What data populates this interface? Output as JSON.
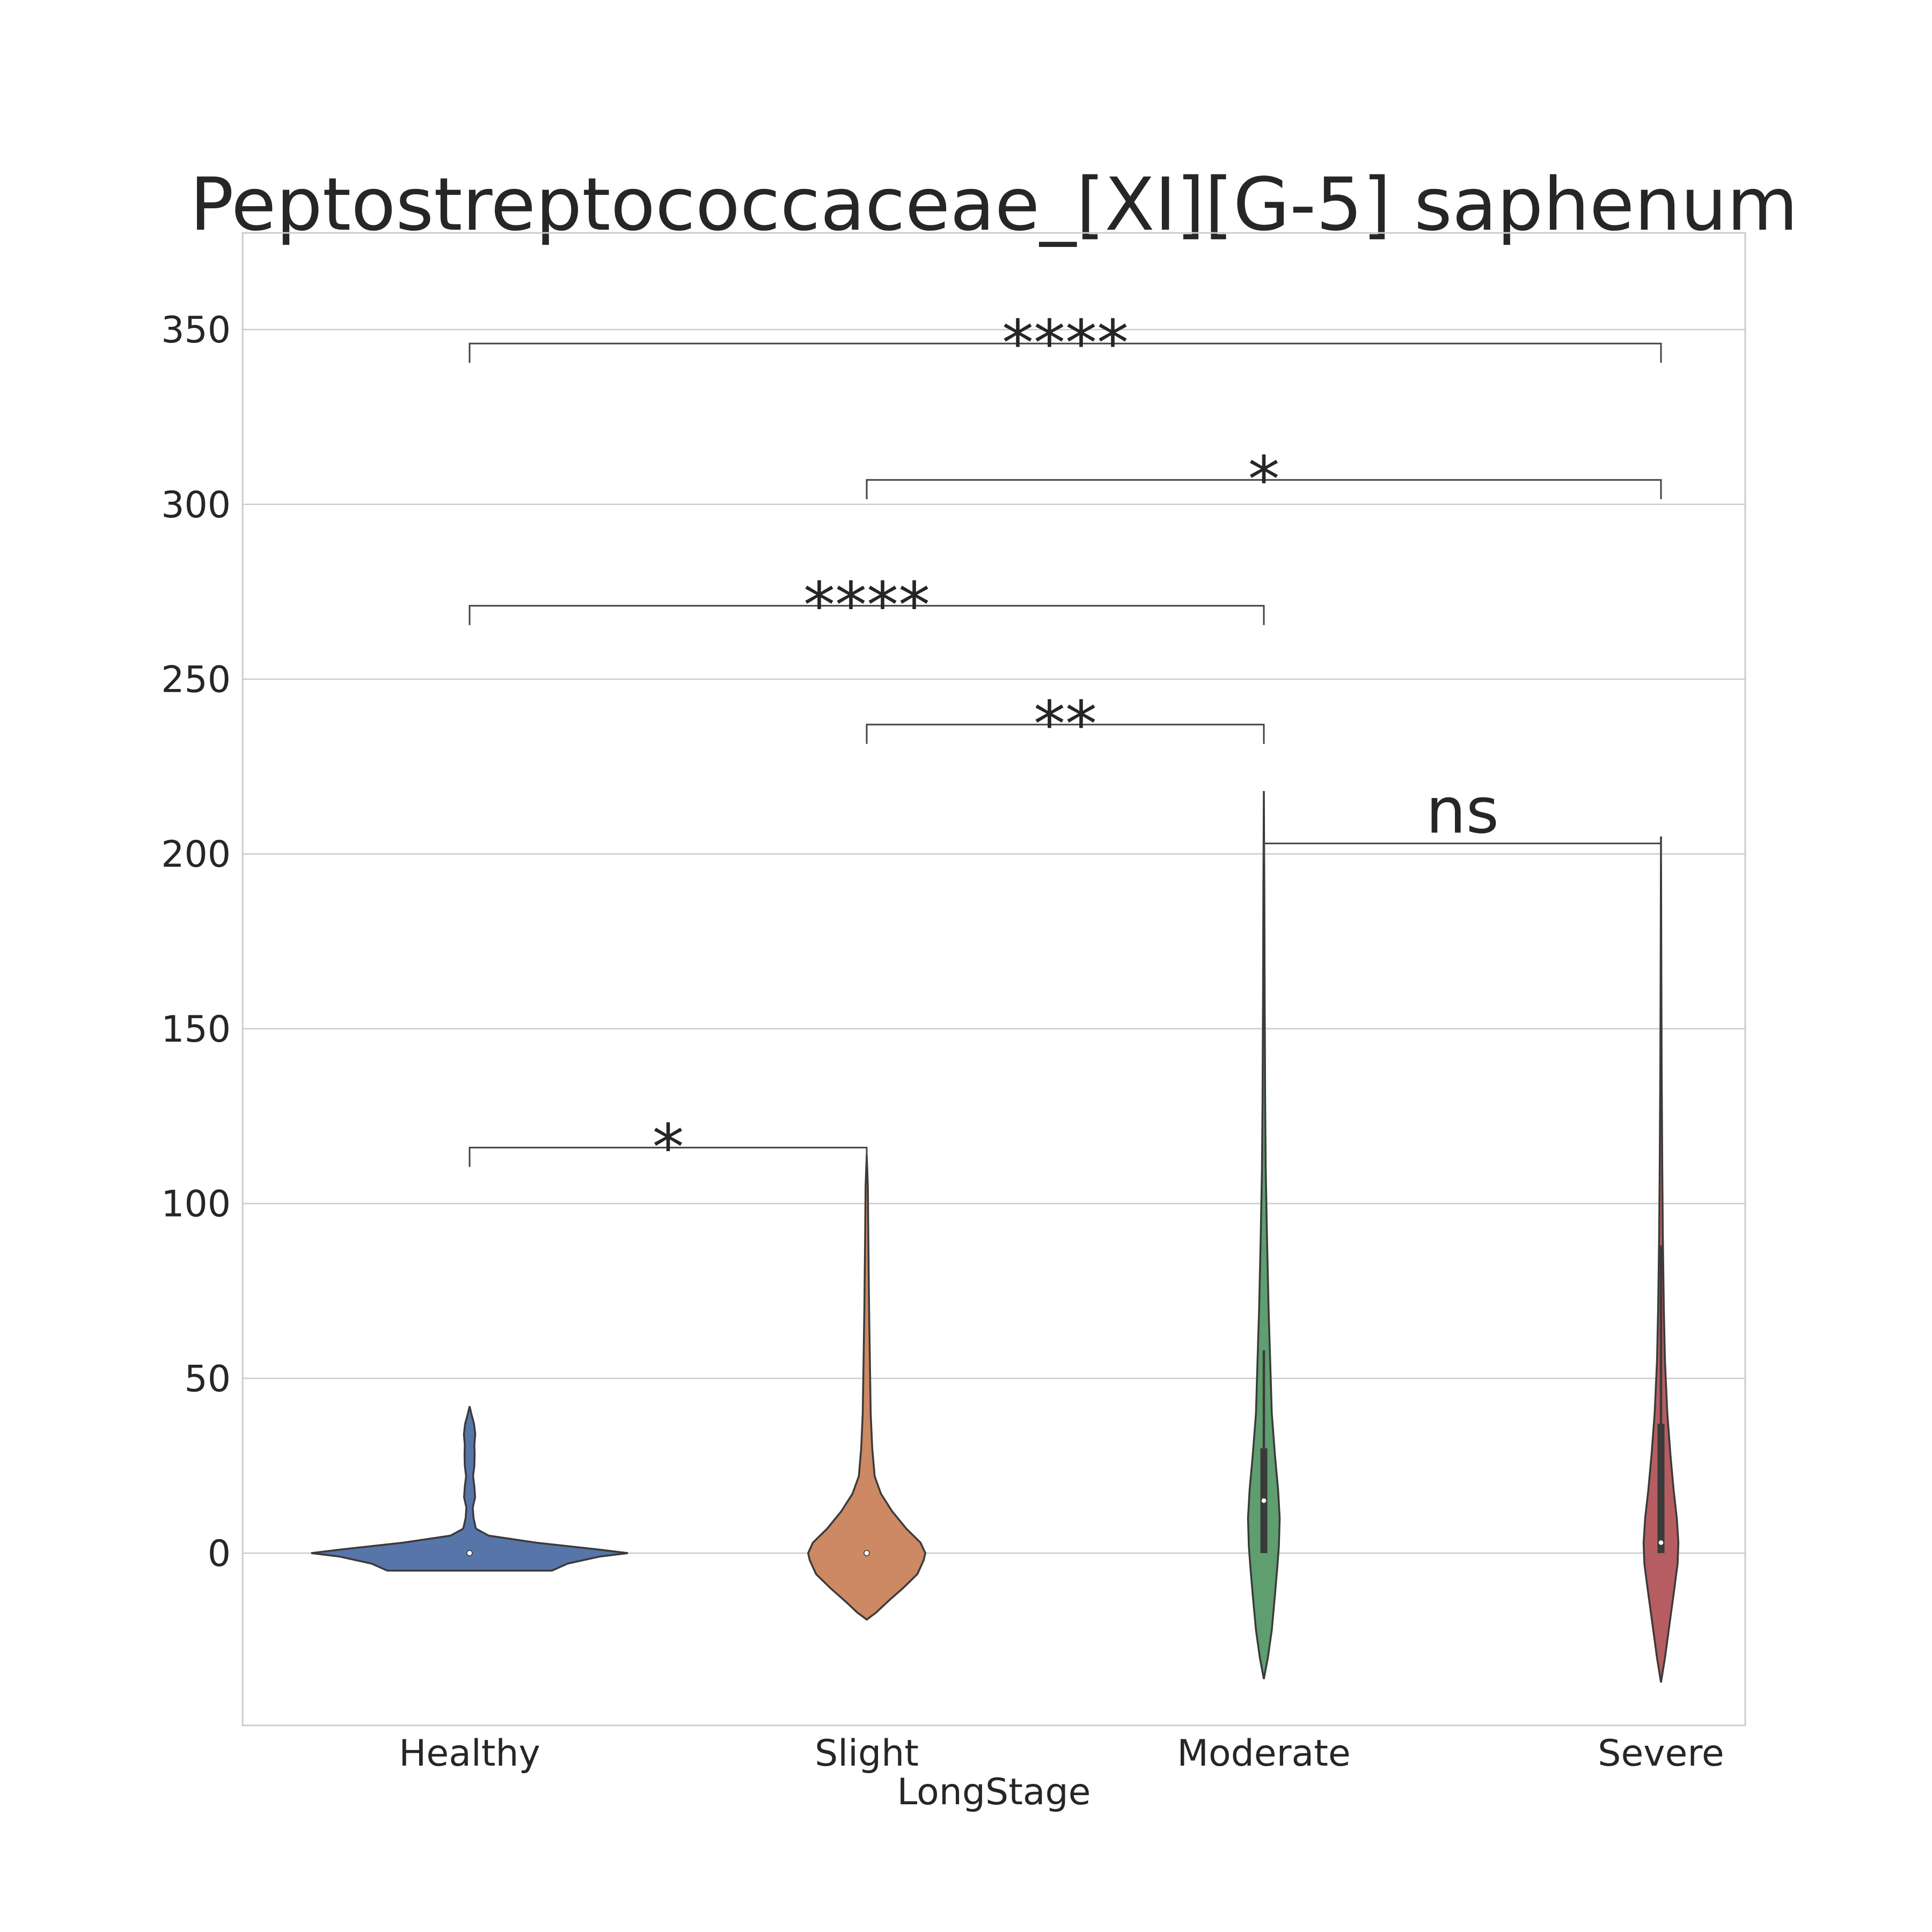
{
  "chart_data": {
    "type": "violin",
    "title": "Peptostreptococcaceae_[XI][G-5] saphenum",
    "xlabel": "LongStage",
    "ylabel": "",
    "categories": [
      "Healthy",
      "Slight",
      "Moderate",
      "Severe"
    ],
    "colors": [
      "#5875a9",
      "#cc8963",
      "#5f9e6e",
      "#b55d60"
    ],
    "ylim": [
      -50,
      375
    ],
    "yticks": [
      0,
      50,
      100,
      150,
      200,
      250,
      300,
      350
    ],
    "grid": true,
    "legend": "none",
    "violins": [
      {
        "category": "Healthy",
        "range": [
          -5,
          42
        ],
        "median": 0,
        "q1": 0,
        "q3": 0,
        "whisker": [
          0,
          0
        ],
        "density": [
          [
            -5,
            0.52
          ],
          [
            -3,
            0.62
          ],
          [
            -1,
            0.82
          ],
          [
            0,
            1.0
          ],
          [
            1,
            0.82
          ],
          [
            3,
            0.42
          ],
          [
            5,
            0.12
          ],
          [
            7,
            0.04
          ],
          [
            10,
            0.025
          ],
          [
            13,
            0.02
          ],
          [
            16,
            0.035
          ],
          [
            19,
            0.03
          ],
          [
            22,
            0.022
          ],
          [
            25,
            0.03
          ],
          [
            28,
            0.032
          ],
          [
            31,
            0.03
          ],
          [
            34,
            0.036
          ],
          [
            37,
            0.028
          ],
          [
            40,
            0.01
          ],
          [
            42,
            0
          ]
        ]
      },
      {
        "category": "Slight",
        "range": [
          -19,
          114
        ],
        "median": 0,
        "q1": 0,
        "q3": 0,
        "whisker": [
          0,
          0
        ],
        "density": [
          [
            -19,
            0
          ],
          [
            -17,
            0.06
          ],
          [
            -14,
            0.13
          ],
          [
            -10,
            0.23
          ],
          [
            -6,
            0.32
          ],
          [
            -2,
            0.36
          ],
          [
            0,
            0.37
          ],
          [
            3,
            0.34
          ],
          [
            7,
            0.25
          ],
          [
            12,
            0.16
          ],
          [
            17,
            0.09
          ],
          [
            22,
            0.05
          ],
          [
            30,
            0.035
          ],
          [
            40,
            0.025
          ],
          [
            55,
            0.02
          ],
          [
            70,
            0.015
          ],
          [
            90,
            0.01
          ],
          [
            105,
            0.007
          ],
          [
            114,
            0
          ]
        ]
      },
      {
        "category": "Moderate",
        "range": [
          -36,
          218
        ],
        "median": 15,
        "q1": 0,
        "q3": 30,
        "whisker": [
          0,
          58
        ],
        "density": [
          [
            -36,
            0
          ],
          [
            -30,
            0.025
          ],
          [
            -22,
            0.05
          ],
          [
            -12,
            0.07
          ],
          [
            -4,
            0.085
          ],
          [
            2,
            0.095
          ],
          [
            10,
            0.1
          ],
          [
            18,
            0.09
          ],
          [
            28,
            0.07
          ],
          [
            40,
            0.05
          ],
          [
            55,
            0.04
          ],
          [
            70,
            0.03
          ],
          [
            90,
            0.02
          ],
          [
            110,
            0.012
          ],
          [
            130,
            0.008
          ],
          [
            160,
            0.005
          ],
          [
            190,
            0.003
          ],
          [
            218,
            0
          ]
        ]
      },
      {
        "category": "Severe",
        "range": [
          -37,
          205
        ],
        "median": 3,
        "q1": 0,
        "q3": 37,
        "whisker": [
          0,
          88
        ],
        "density": [
          [
            -37,
            0
          ],
          [
            -30,
            0.025
          ],
          [
            -20,
            0.055
          ],
          [
            -10,
            0.085
          ],
          [
            -3,
            0.105
          ],
          [
            3,
            0.11
          ],
          [
            10,
            0.1
          ],
          [
            18,
            0.08
          ],
          [
            28,
            0.06
          ],
          [
            40,
            0.04
          ],
          [
            55,
            0.025
          ],
          [
            70,
            0.018
          ],
          [
            90,
            0.012
          ],
          [
            110,
            0.008
          ],
          [
            140,
            0.004
          ],
          [
            170,
            0.002
          ],
          [
            205,
            0
          ]
        ]
      }
    ],
    "annotations": [
      {
        "pair": [
          "Healthy",
          "Slight"
        ],
        "label": "*",
        "y": 116
      },
      {
        "pair": [
          "Moderate",
          "Severe"
        ],
        "label": "ns",
        "y": 203
      },
      {
        "pair": [
          "Slight",
          "Moderate"
        ],
        "label": "**",
        "y": 237
      },
      {
        "pair": [
          "Healthy",
          "Moderate"
        ],
        "label": "****",
        "y": 271
      },
      {
        "pair": [
          "Slight",
          "Severe"
        ],
        "label": "*",
        "y": 307
      },
      {
        "pair": [
          "Healthy",
          "Severe"
        ],
        "label": "****",
        "y": 346
      }
    ]
  }
}
